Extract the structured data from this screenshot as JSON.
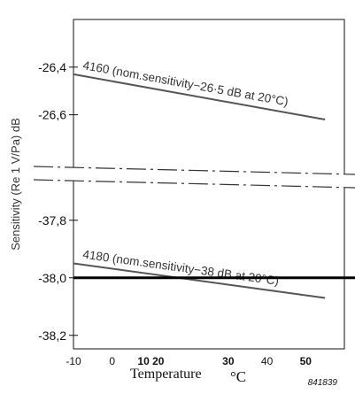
{
  "chart_data": {
    "type": "line",
    "title": "",
    "xlabel": "Temperature",
    "xunit": "°C",
    "ylabel": "Sensitivity (Re 1 V/Pa) dB",
    "figure_id": "841839",
    "x_ticks": [
      {
        "value": -10,
        "label": "-10",
        "bold": false
      },
      {
        "value": 0,
        "label": "0",
        "bold": false
      },
      {
        "value": 10,
        "label": "10 20",
        "bold": true
      },
      {
        "value": 30,
        "label": "30",
        "bold": true
      },
      {
        "value": 40,
        "label": "40",
        "bold": false
      },
      {
        "value": 50,
        "label": "50",
        "bold": true
      }
    ],
    "xlim": [
      -10,
      60
    ],
    "upper_panel": {
      "ylim": [
        -26.2,
        -26.75
      ],
      "ticks": [
        {
          "value": -26.4,
          "label": "-26,4"
        },
        {
          "value": -26.6,
          "label": "-26,6"
        }
      ]
    },
    "lower_panel": {
      "ylim": [
        -37.65,
        -38.25
      ],
      "ticks": [
        {
          "value": -37.8,
          "label": "-37,8"
        },
        {
          "value": -38.0,
          "label": "-38,0"
        },
        {
          "value": -38.2,
          "label": "-38,2"
        }
      ]
    },
    "series": [
      {
        "name": "4160 (nom.sensitivity−26·5 dB at 20°C)",
        "panel": "upper",
        "x": [
          -10,
          55
        ],
        "y": [
          -26.43,
          -26.62
        ]
      },
      {
        "name": "4180 (nom.sensitivity−38 dB at 20°C)",
        "panel": "lower",
        "x": [
          -10,
          55
        ],
        "y": [
          -37.95,
          -38.07
        ]
      }
    ],
    "reference_line": {
      "panel": "lower",
      "y": -38.0
    },
    "axis_break": true,
    "grid": false
  }
}
